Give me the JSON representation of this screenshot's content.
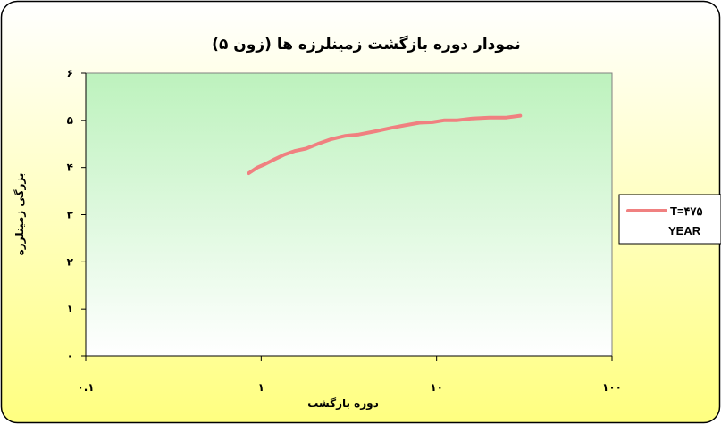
{
  "chart_data": {
    "type": "line",
    "title": "نمودار دوره بازگشت زمینلرزه ها (زون ۵)",
    "xlabel": "دوره بازگشت",
    "ylabel": "بزرگی زمینلرزه",
    "x_scale": "log",
    "xlim": [
      0.1,
      100
    ],
    "ylim": [
      0,
      6
    ],
    "x_ticks": [
      0.1,
      1,
      10,
      100
    ],
    "x_tick_labels": [
      "۰.۱",
      "۱",
      "۱۰",
      "۱۰۰"
    ],
    "y_ticks": [
      0,
      1,
      2,
      3,
      4,
      5,
      6
    ],
    "y_tick_labels": [
      "۰",
      "۱",
      "۲",
      "۳",
      "۴",
      "۵",
      "۶"
    ],
    "grid": false,
    "legend_position": "right",
    "series": [
      {
        "name": "T=۴۷۵ YEAR",
        "color": "#f08080",
        "x": [
          0.85,
          0.95,
          1.05,
          1.2,
          1.35,
          1.55,
          1.8,
          2.1,
          2.5,
          3.0,
          3.6,
          4.5,
          5.5,
          6.5,
          8.0,
          9.5,
          11.0,
          13.0,
          16.0,
          20.0,
          25.0,
          30.0
        ],
        "y": [
          3.88,
          4.0,
          4.07,
          4.18,
          4.27,
          4.35,
          4.4,
          4.5,
          4.6,
          4.67,
          4.7,
          4.77,
          4.84,
          4.89,
          4.95,
          4.96,
          5.0,
          5.0,
          5.04,
          5.06,
          5.06,
          5.1
        ]
      }
    ],
    "colors": {
      "plot_bg_top": "#bdf2bd",
      "plot_bg_bottom": "#ffffff",
      "frame_bg_top": "#ffffff",
      "frame_bg_bottom": "#ffff80",
      "frame_border": "#000000"
    }
  }
}
